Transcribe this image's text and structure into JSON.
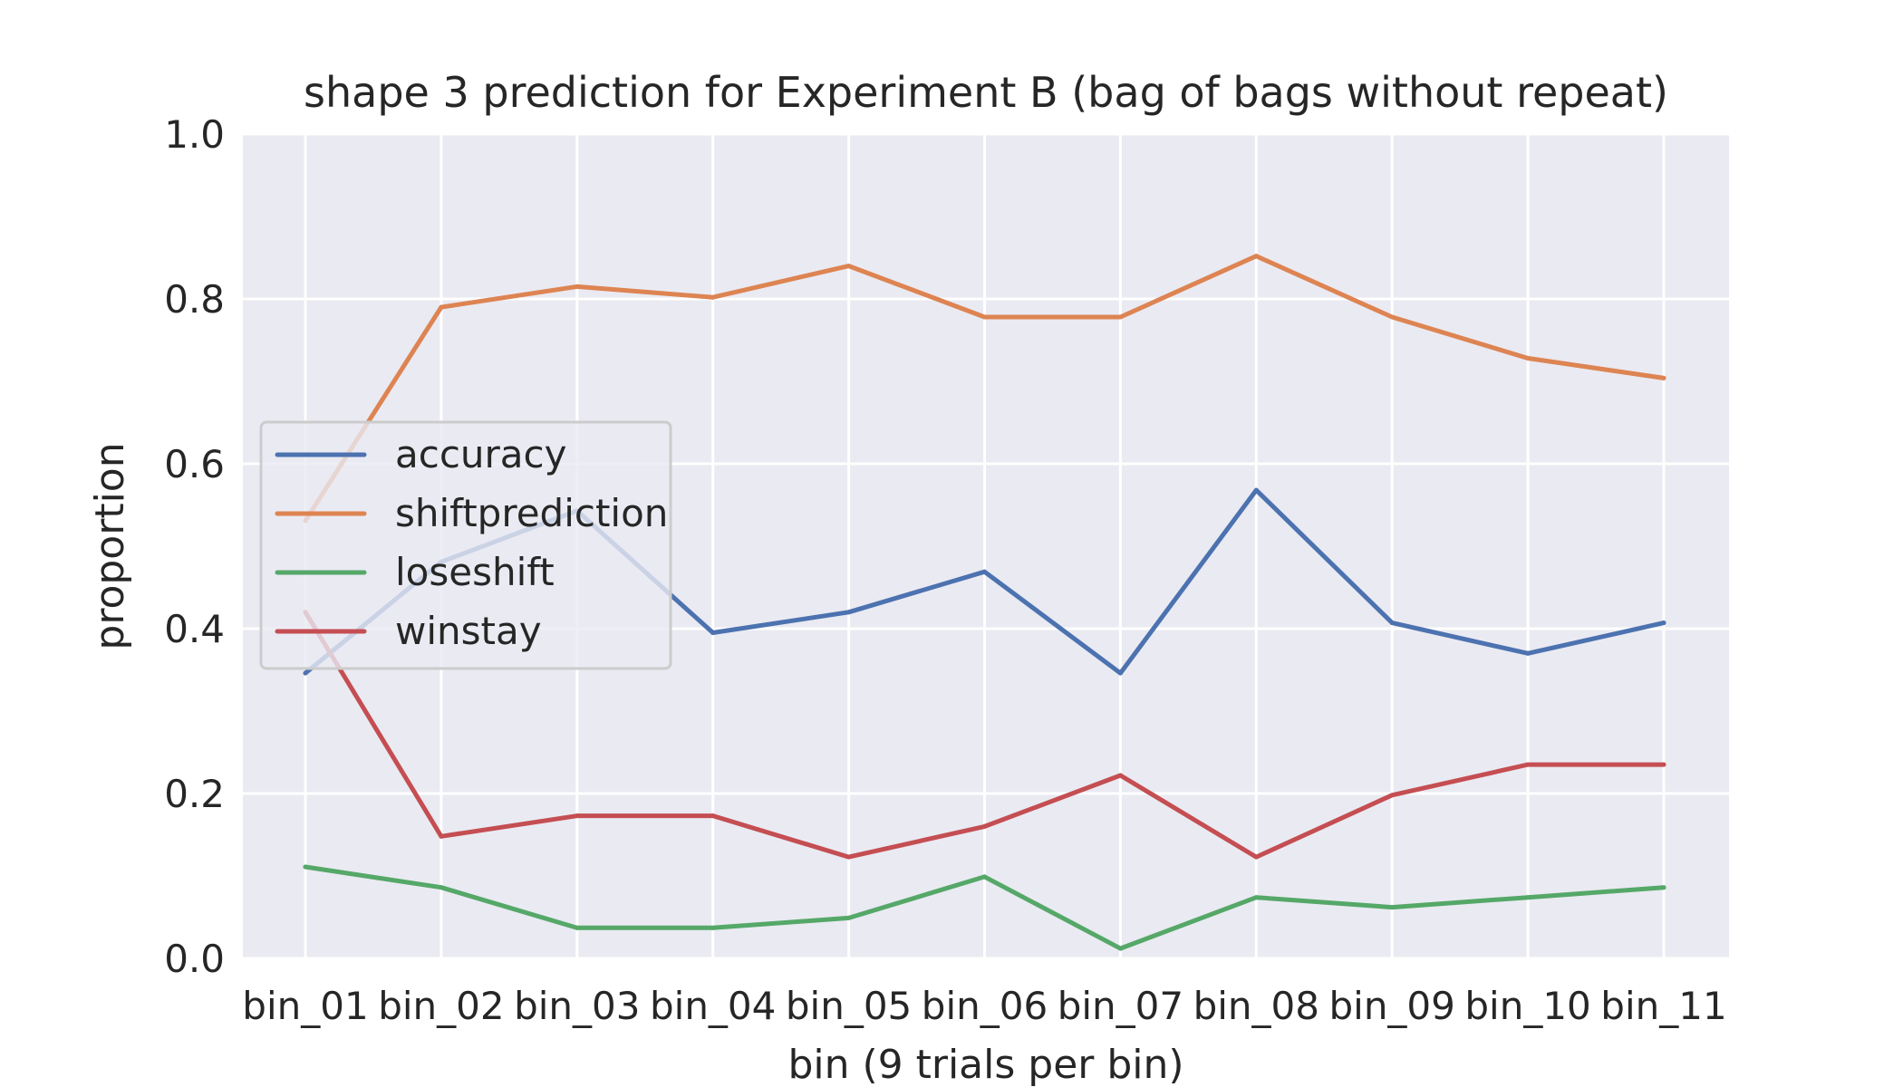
{
  "chart_data": {
    "type": "line",
    "title": "shape 3 prediction for Experiment B (bag of bags without repeat)",
    "xlabel": "bin (9 trials per bin)",
    "ylabel": "proportion",
    "categories": [
      "bin_01",
      "bin_02",
      "bin_03",
      "bin_04",
      "bin_05",
      "bin_06",
      "bin_07",
      "bin_08",
      "bin_09",
      "bin_10",
      "bin_11"
    ],
    "ylim": [
      0,
      1.0
    ],
    "yticks": [
      "0.0",
      "0.2",
      "0.4",
      "0.6",
      "0.8",
      "1.0"
    ],
    "grid": true,
    "legend_position": "center-left",
    "colors": {
      "plot_background": "#eaeaf2",
      "grid": "#ffffff"
    },
    "series": [
      {
        "name": "accuracy",
        "color": "#4c72b0",
        "values": [
          0.346,
          0.481,
          0.543,
          0.395,
          0.42,
          0.469,
          0.346,
          0.568,
          0.407,
          0.37,
          0.407
        ]
      },
      {
        "name": "shiftprediction",
        "color": "#dd8452",
        "values": [
          0.531,
          0.79,
          0.815,
          0.802,
          0.84,
          0.778,
          0.778,
          0.852,
          0.778,
          0.728,
          0.704
        ]
      },
      {
        "name": "loseshift",
        "color": "#55a868",
        "values": [
          0.111,
          0.086,
          0.037,
          0.037,
          0.049,
          0.099,
          0.012,
          0.074,
          0.062,
          0.074,
          0.086
        ]
      },
      {
        "name": "winstay",
        "color": "#c44e52",
        "values": [
          0.42,
          0.148,
          0.173,
          0.173,
          0.123,
          0.16,
          0.222,
          0.123,
          0.198,
          0.235,
          0.235
        ]
      }
    ]
  }
}
